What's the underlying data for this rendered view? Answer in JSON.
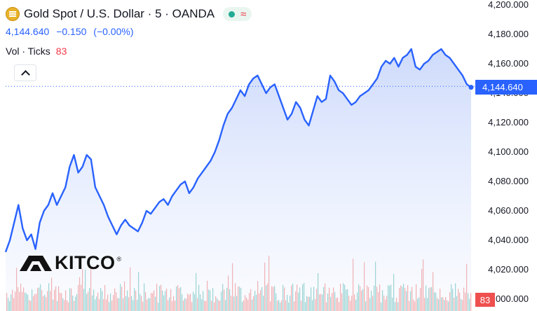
{
  "header": {
    "symbol_title": "Gold Spot / U.S. Dollar · 5 · OANDA",
    "last_value": "4,144.640",
    "change": "−0.150",
    "change_percent": "(−0.00%)",
    "volume_label": "Vol · Ticks",
    "volume_value": "83",
    "status_wave": "≈"
  },
  "price_axis": {
    "ticks": [
      "4,200.000",
      "4,180.000",
      "4,160.000",
      "4,140.000",
      "4,120.000",
      "4,100.000",
      "4,080.000",
      "4,060.000",
      "4,040.000",
      "4,020.000",
      "4,000.000"
    ]
  },
  "last_price_label": "4,144.640",
  "volume_badge": "83",
  "logo": {
    "text": "KITCO",
    "mark": "®"
  },
  "colors": {
    "line": "#2962ff",
    "area_top": "#c5d4fb",
    "volume_up": "#26a69a",
    "volume_down": "#ef5350",
    "last_price_bg": "#2962ff",
    "volume_badge_bg": "#ef4f4f"
  },
  "chart_data": {
    "type": "area",
    "y_range": [
      4000,
      4200
    ],
    "series": [
      {
        "values": [
          4032,
          4040,
          4052,
          4064,
          4048,
          4040,
          4044,
          4034,
          4052,
          4060,
          4064,
          4072,
          4064,
          4070,
          4076,
          4090,
          4098,
          4086,
          4090,
          4098,
          4095,
          4076,
          4070,
          4064,
          4056,
          4050,
          4044,
          4050,
          4054,
          4050,
          4048,
          4046,
          4052,
          4060,
          4058,
          4062,
          4066,
          4068,
          4064,
          4070,
          4074,
          4078,
          4080,
          4072,
          4076,
          4082,
          4086,
          4090,
          4094,
          4100,
          4108,
          4118,
          4126,
          4130,
          4136,
          4142,
          4138,
          4146,
          4150,
          4152,
          4146,
          4140,
          4144,
          4146,
          4138,
          4130,
          4122,
          4126,
          4134,
          4130,
          4122,
          4118,
          4128,
          4138,
          4134,
          4136,
          4152,
          4148,
          4142,
          4140,
          4136,
          4132,
          4134,
          4138,
          4140,
          4142,
          4146,
          4150,
          4158,
          4162,
          4160,
          4164,
          4158,
          4164,
          4166,
          4170,
          4158,
          4156,
          4160,
          4162,
          4166,
          4168,
          4170,
          4166,
          4164,
          4160,
          4156,
          4152,
          4146,
          4144
        ]
      }
    ]
  }
}
